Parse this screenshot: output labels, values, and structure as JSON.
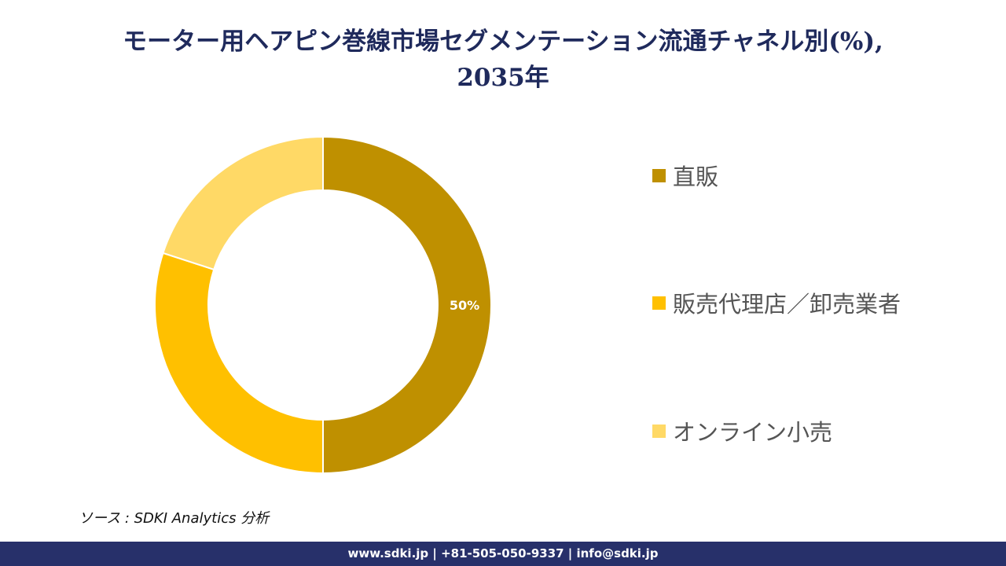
{
  "title": {
    "line1": "モーター用ヘアピン巻線市場セグメンテーション流通チャネル別(%),",
    "line2": "2035年"
  },
  "chart_data": {
    "type": "pie",
    "style": "donut",
    "categories": [
      "直販",
      "販売代理店／卸売業者",
      "オンライン小売"
    ],
    "values": [
      50,
      30,
      20
    ],
    "data_labels": [
      "50%",
      "",
      ""
    ],
    "colors": [
      "#bf9000",
      "#ffc000",
      "#ffd966"
    ],
    "legend_position": "right"
  },
  "legend": {
    "items": [
      {
        "label": "直販",
        "color": "#bf9000"
      },
      {
        "label": "販売代理店／卸売業者",
        "color": "#ffc000"
      },
      {
        "label": "オンライン小売",
        "color": "#ffd966"
      }
    ]
  },
  "source": "ソース : SDKI Analytics 分析",
  "footer": "www.sdki.jp | +81-505-050-9337 | info@sdki.jp"
}
